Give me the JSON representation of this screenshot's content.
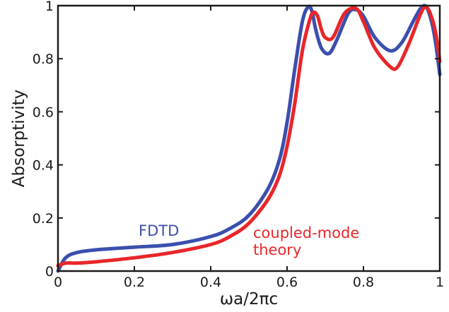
{
  "chart_data": {
    "type": "line",
    "title": "",
    "xlabel": "ωa/2πc",
    "ylabel": "Absorptivity",
    "xlim": [
      0,
      1
    ],
    "ylim": [
      0,
      1
    ],
    "x_ticks": [
      "0",
      "0.2",
      "0.4",
      "0.6",
      "0.8",
      "1"
    ],
    "y_ticks": [
      "0",
      "0.2",
      "0.4",
      "0.6",
      "0.8",
      "1"
    ],
    "grid": false,
    "legend": "inline labels",
    "series": [
      {
        "name": "FDTD",
        "color": "#3b4fae",
        "x": [
          0,
          0.02,
          0.05,
          0.1,
          0.2,
          0.3,
          0.4,
          0.45,
          0.5,
          0.55,
          0.58,
          0.6,
          0.62,
          0.64,
          0.655,
          0.665,
          0.675,
          0.69,
          0.71,
          0.73,
          0.76,
          0.78,
          0.8,
          0.83,
          0.87,
          0.9,
          0.93,
          0.95,
          0.965,
          0.98,
          0.99,
          1.0
        ],
        "y": [
          0.0,
          0.05,
          0.07,
          0.08,
          0.09,
          0.1,
          0.13,
          0.16,
          0.21,
          0.31,
          0.42,
          0.56,
          0.76,
          0.94,
          0.995,
          0.98,
          0.91,
          0.84,
          0.82,
          0.87,
          0.97,
          0.985,
          0.96,
          0.88,
          0.83,
          0.86,
          0.94,
          0.99,
          0.995,
          0.93,
          0.85,
          0.74
        ]
      },
      {
        "name": "coupled-mode theory",
        "color": "#e8262a",
        "x": [
          0,
          0.02,
          0.05,
          0.1,
          0.2,
          0.3,
          0.4,
          0.45,
          0.5,
          0.55,
          0.58,
          0.6,
          0.62,
          0.64,
          0.66,
          0.67,
          0.68,
          0.69,
          0.7,
          0.72,
          0.75,
          0.78,
          0.8,
          0.83,
          0.87,
          0.89,
          0.92,
          0.95,
          0.965,
          0.98,
          0.99,
          1.0
        ],
        "y": [
          0.02,
          0.03,
          0.03,
          0.035,
          0.05,
          0.07,
          0.1,
          0.13,
          0.18,
          0.27,
          0.36,
          0.47,
          0.63,
          0.83,
          0.95,
          0.975,
          0.96,
          0.91,
          0.88,
          0.88,
          0.97,
          0.99,
          0.94,
          0.84,
          0.77,
          0.77,
          0.86,
          0.97,
          0.995,
          0.95,
          0.89,
          0.79
        ]
      }
    ]
  }
}
